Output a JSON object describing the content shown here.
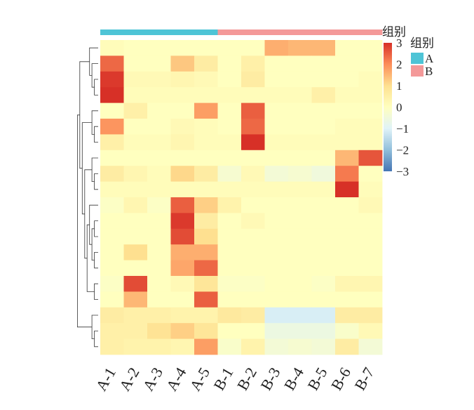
{
  "chart_data": {
    "type": "heatmap",
    "columns": [
      "A-1",
      "A-2",
      "A-3",
      "A-4",
      "A-5",
      "B-1",
      "B-2",
      "B-3",
      "B-4",
      "B-5",
      "B-6",
      "B-7"
    ],
    "column_groups": [
      "A",
      "A",
      "A",
      "A",
      "A",
      "B",
      "B",
      "B",
      "B",
      "B",
      "B",
      "B"
    ],
    "values": [
      [
        0.1,
        0,
        0,
        0,
        0,
        0,
        0,
        1.6,
        1.5,
        1.5,
        0,
        0
      ],
      [
        2.4,
        0,
        0,
        1.3,
        0.6,
        0,
        0.5,
        0,
        0,
        0,
        0,
        0
      ],
      [
        2.9,
        0.2,
        0.2,
        0.3,
        0.2,
        0,
        0.6,
        0,
        0,
        0,
        0,
        0.1
      ],
      [
        3.0,
        0.1,
        0.1,
        0.1,
        0.1,
        0.1,
        0.1,
        0.1,
        0.1,
        0.5,
        0.1,
        0.1
      ],
      [
        0,
        0.5,
        0,
        0,
        1.8,
        0,
        2.5,
        0,
        0,
        0,
        0,
        0
      ],
      [
        1.9,
        0,
        0,
        0.2,
        0.1,
        0,
        2.4,
        0,
        0,
        0,
        0.1,
        0.1
      ],
      [
        0.5,
        0.1,
        0.1,
        0.3,
        0.1,
        0.1,
        3.0,
        0.1,
        0.1,
        0.1,
        0.1,
        0.1
      ],
      [
        0,
        0,
        0,
        0,
        0,
        0,
        0,
        0,
        0,
        0,
        1.5,
        2.6
      ],
      [
        0.6,
        0.3,
        0.1,
        1.1,
        0.6,
        -0.3,
        0.2,
        -0.4,
        -0.3,
        -0.5,
        2.2,
        0
      ],
      [
        0.1,
        0.1,
        0.1,
        0.1,
        0.1,
        0.1,
        0.1,
        0.1,
        0.1,
        0.1,
        3.0,
        0.1
      ],
      [
        -0.1,
        0.3,
        -0.1,
        2.5,
        1.2,
        0.4,
        0,
        0,
        0,
        0,
        0,
        0.2
      ],
      [
        0,
        0,
        0,
        2.9,
        0.6,
        0,
        0.2,
        0,
        0,
        0,
        0,
        0
      ],
      [
        0,
        0,
        0,
        2.7,
        1.0,
        0,
        0,
        0,
        0,
        0,
        0,
        0
      ],
      [
        0,
        1.0,
        0,
        1.6,
        1.6,
        0,
        0,
        0,
        0,
        0,
        0,
        0
      ],
      [
        0,
        0,
        0,
        1.7,
        2.4,
        0,
        0,
        0,
        0,
        0,
        0,
        0
      ],
      [
        -0.1,
        2.7,
        0,
        0.2,
        0.8,
        -0.1,
        -0.1,
        0,
        0,
        -0.1,
        0.3,
        0.3
      ],
      [
        0,
        1.5,
        0,
        0,
        2.5,
        0,
        0,
        0,
        0,
        0,
        0,
        0
      ],
      [
        0.6,
        0.5,
        0.5,
        0.4,
        0.4,
        0.7,
        0.6,
        -1.1,
        -1.1,
        -1.1,
        0.6,
        0.6
      ],
      [
        0.5,
        0.5,
        0.9,
        1.2,
        0.8,
        0,
        0,
        -0.6,
        -0.6,
        -0.6,
        -0.2,
        0.2
      ],
      [
        0.5,
        0.4,
        0.4,
        0.3,
        1.8,
        -0.2,
        0.4,
        -0.4,
        -0.3,
        -0.4,
        0.6,
        -0.4
      ]
    ],
    "color_scale": {
      "min": -3,
      "max": 3,
      "ticks": [
        3,
        2,
        1,
        0,
        -1,
        -2,
        -3
      ],
      "tick_labels": [
        "3",
        "2",
        "1",
        "0",
        "−1",
        "−2",
        "−3"
      ],
      "colors": [
        "#4575b4",
        "#91bfdb",
        "#e0f3f8",
        "#ffffbf",
        "#fee090",
        "#fc8d59",
        "#d73027"
      ]
    },
    "annotation": {
      "label": "组别",
      "legend_title": "组别",
      "legend": [
        {
          "group": "A",
          "color": "#4ec4d6"
        },
        {
          "group": "B",
          "color": "#f49999"
        }
      ]
    },
    "row_dendrogram": true,
    "legend_position": "right"
  }
}
